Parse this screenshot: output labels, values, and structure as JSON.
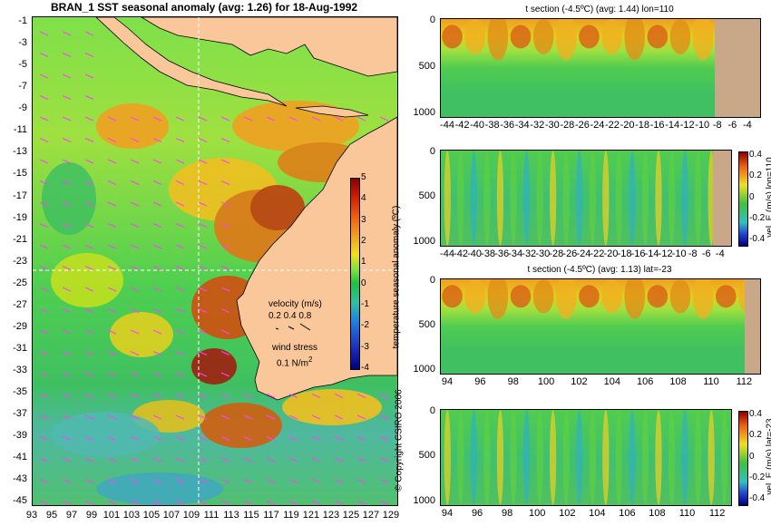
{
  "main_map": {
    "title": "BRAN_1 SST seasonal anomaly (avg: 1.26) for 18-Aug-1992",
    "lat_ticks": [
      "-1",
      "-3",
      "-5",
      "-7",
      "-9",
      "-11",
      "-13",
      "-15",
      "-17",
      "-19",
      "-21",
      "-23",
      "-25",
      "-27",
      "-29",
      "-31",
      "-33",
      "-35",
      "-37",
      "-39",
      "-41",
      "-43",
      "-45"
    ],
    "lon_ticks": [
      "93",
      "95",
      "97",
      "99",
      "101",
      "103",
      "105",
      "107",
      "109",
      "111",
      "113",
      "115",
      "117",
      "119",
      "121",
      "123",
      "125",
      "127",
      "129"
    ],
    "colorbar": {
      "label": "temperature seasonal anomaly (ºC)",
      "ticks": [
        "5",
        "4",
        "3",
        "2",
        "1",
        "0",
        "-1",
        "-2",
        "-3",
        "-4"
      ]
    },
    "legend": {
      "velocity_title": "velocity (m/s)",
      "velocity_values": "0.2 0.4 0.8",
      "wind_title": "wind stress",
      "wind_value": "0.1 N/m",
      "wind_exp": "2"
    },
    "copyright": "© Copyright CSIRO 2006",
    "colors": {
      "land": "#f9c79a",
      "vector": "#ff40ff",
      "crosshair": "#ffffff"
    }
  },
  "sections": [
    {
      "title": "t section (-4.5ºC) (avg: 1.44) lon=110",
      "y_ticks": [
        "0",
        "500",
        "1000"
      ],
      "x_ticks": [
        "-44",
        "-42",
        "-40",
        "-38",
        "-36",
        "-34",
        "-32",
        "-30",
        "-28",
        "-26",
        "-24",
        "-22",
        "-20",
        "-18",
        "-16",
        "-14",
        "-12",
        "-10",
        "-8",
        "-6",
        "-4"
      ],
      "colorbar": null
    },
    {
      "title": "",
      "y_ticks": [
        "0",
        "500",
        "1000"
      ],
      "x_ticks": [
        "-44",
        "-42",
        "-40",
        "-38",
        "-36",
        "-34",
        "-32",
        "-30",
        "-28",
        "-26",
        "-24",
        "-22",
        "-20",
        "-18",
        "-16",
        "-14",
        "-12",
        "-10",
        "-8",
        "-6",
        "-4"
      ],
      "colorbar": {
        "label": "vel. E (m/s) lon=110",
        "ticks": [
          "0.4",
          "0.2",
          "0",
          "-0.2",
          "-0.4"
        ]
      }
    },
    {
      "title": "t section (-4.5ºC) (avg: 1.13) lat=-23",
      "y_ticks": [
        "0",
        "500",
        "1000"
      ],
      "x_ticks": [
        "94",
        "96",
        "98",
        "100",
        "102",
        "104",
        "106",
        "108",
        "110",
        "112"
      ],
      "colorbar": null
    },
    {
      "title": "",
      "y_ticks": [
        "0",
        "500",
        "1000"
      ],
      "x_ticks": [
        "94",
        "96",
        "98",
        "100",
        "102",
        "104",
        "106",
        "108",
        "110",
        "112"
      ],
      "colorbar": {
        "label": "vel. E (m/s) lat=-23",
        "ticks": [
          "0.4",
          "0.2",
          "0",
          "-0.2",
          "-0.4"
        ]
      }
    }
  ]
}
